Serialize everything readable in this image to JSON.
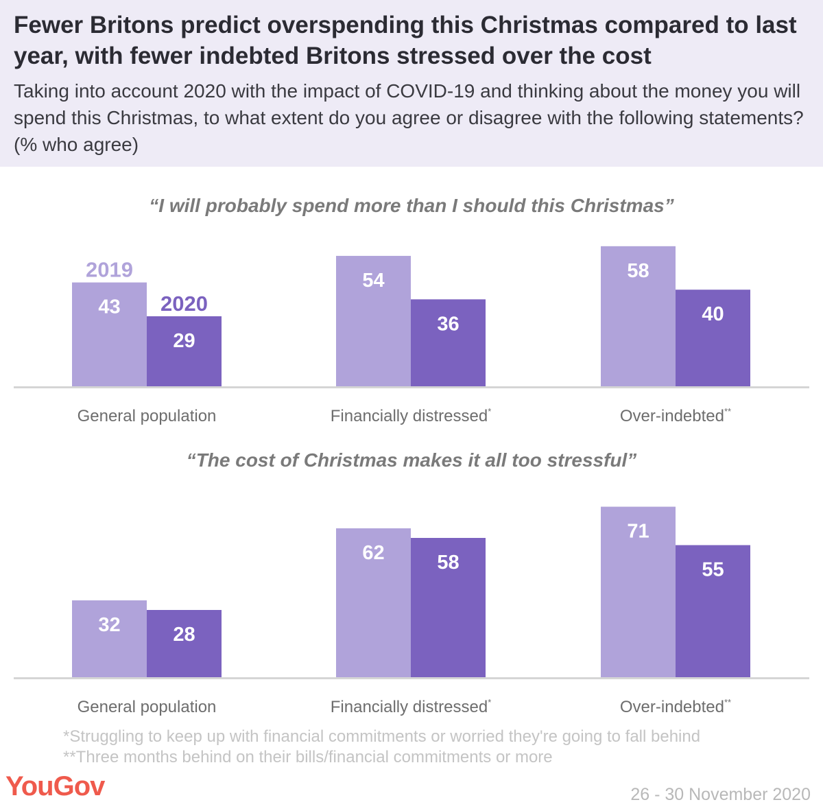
{
  "header": {
    "title": "Fewer Britons predict overspending this Christmas compared to last year, with fewer indebted Britons stressed over the cost",
    "subtitle": "Taking into account 2020 with the impact of COVID-19 and thinking about the money you will spend this Christmas, to what extent do you agree or disagree with the following statements? (% who agree)"
  },
  "colors": {
    "series_2019": "#b0a3da",
    "series_2020": "#7b62bf",
    "header_bg": "#eeebf6",
    "logo": "#ef5a4c"
  },
  "chart_data": [
    {
      "type": "bar",
      "title": "“I will probably spend more than I should this Christmas”",
      "categories": [
        "General population",
        "Financially distressed*",
        "Over-indebted**"
      ],
      "series": [
        {
          "name": "2019",
          "values": [
            43,
            54,
            58
          ]
        },
        {
          "name": "2020",
          "values": [
            29,
            36,
            40
          ]
        }
      ],
      "ylim": [
        0,
        60
      ],
      "legend": "inline-above-first-group",
      "grid": false
    },
    {
      "type": "bar",
      "title": "“The cost of Christmas makes it all too stressful”",
      "categories": [
        "General population",
        "Financially distressed*",
        "Over-indebted**"
      ],
      "series": [
        {
          "name": "2019",
          "values": [
            32,
            62,
            71
          ]
        },
        {
          "name": "2020",
          "values": [
            28,
            58,
            55
          ]
        }
      ],
      "ylim": [
        0,
        75
      ],
      "grid": false
    }
  ],
  "footnotes": [
    "*Struggling to keep up with financial commitments or worried they're going to fall behind",
    "**Three months behind on their bills/financial commitments or more"
  ],
  "branding": {
    "logo": "YouGov",
    "date": "26 - 30 November 2020"
  }
}
